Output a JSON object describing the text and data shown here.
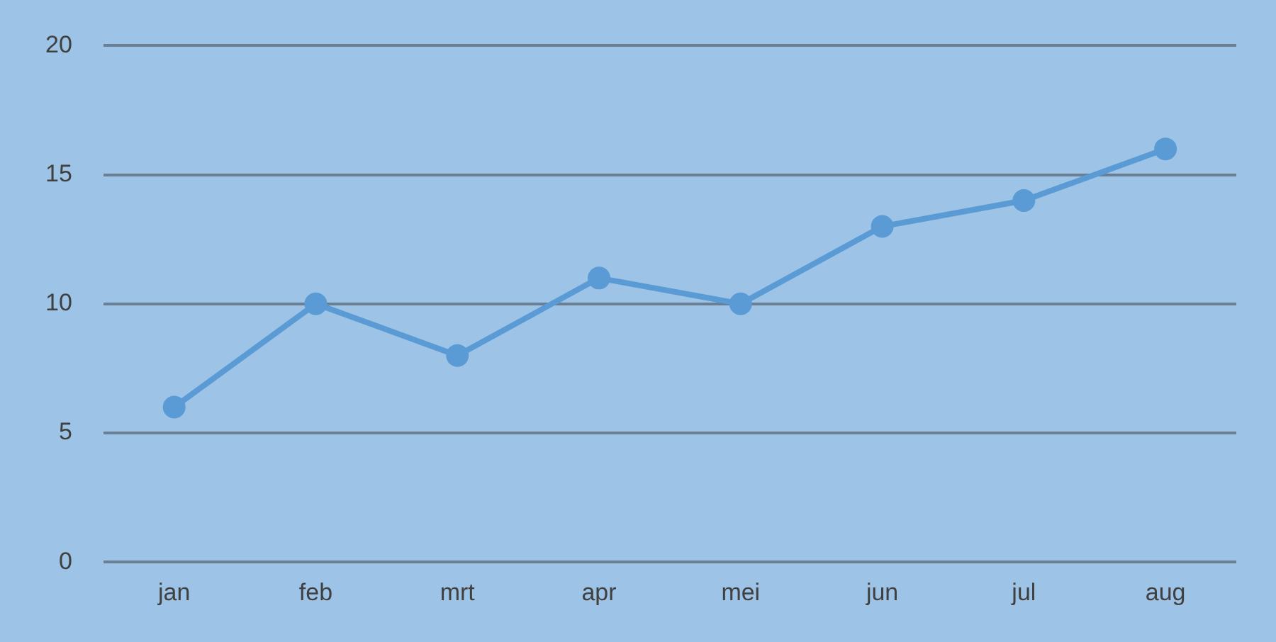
{
  "chart_data": {
    "type": "line",
    "categories": [
      "jan",
      "feb",
      "mrt",
      "apr",
      "mei",
      "jun",
      "jul",
      "aug"
    ],
    "series": [
      {
        "color": "#5b9bd5",
        "values": [
          6,
          10,
          8,
          11,
          10,
          13,
          14,
          16
        ]
      }
    ],
    "ylim": [
      0,
      20
    ],
    "yticks": [
      0,
      5,
      10,
      15,
      20
    ],
    "grid": "y",
    "legend": false,
    "marker": "circle",
    "line_style": "solid"
  }
}
